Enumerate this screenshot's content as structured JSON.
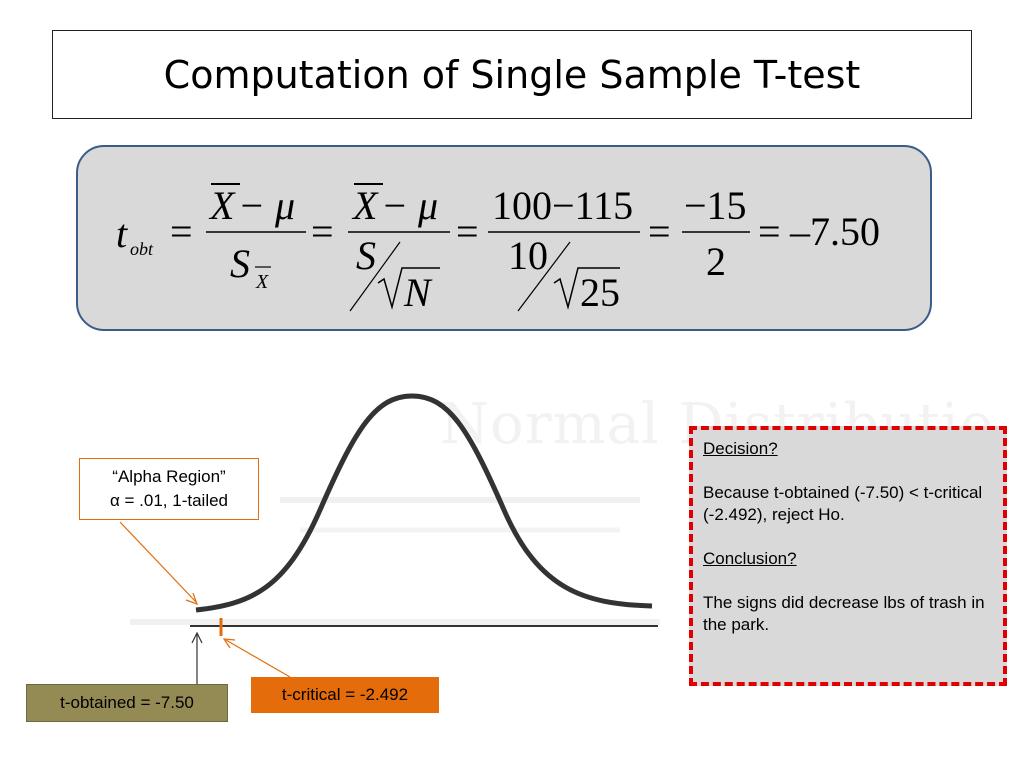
{
  "slide": {
    "title": "Computation of Single Sample T-test"
  },
  "formula": {
    "lhs_t": "t",
    "lhs_sub": "obt",
    "x": "X",
    "minus_mu": " − μ",
    "s": "S",
    "sub_x": "X",
    "n": "N",
    "num3": "100−115",
    "den3": "10",
    "root3": "25",
    "num4": "−15",
    "den4": "2",
    "eq": "=",
    "result": "–7.50"
  },
  "ghost": {
    "text": "Normal Distributio"
  },
  "callouts": {
    "alpha_line1": "“Alpha Region”",
    "alpha_line2": "α = .01, 1-tailed",
    "t_obtained": "t-obtained = -7.50",
    "t_critical": "t-critical = -2.492"
  },
  "decision": {
    "heading": "Decision?",
    "text": "Because t-obtained (-7.50) < t-critical (-2.492), reject Ho.",
    "conclusion_heading": "Conclusion?",
    "conclusion_text": "The signs did decrease lbs of trash in the park."
  },
  "colors": {
    "orange": "#e46c0a",
    "olive": "#948a54",
    "red_dash": "#e00000",
    "panel_gray": "#d9d9d9",
    "formula_border": "#3b5b8a"
  }
}
